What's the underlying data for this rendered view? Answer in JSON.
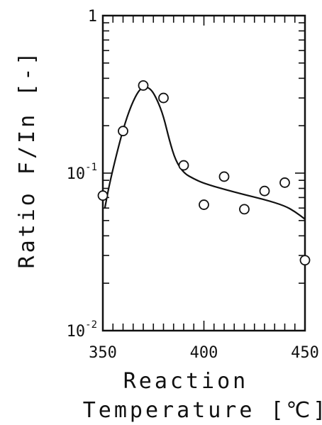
{
  "chart_data": {
    "type": "scatter",
    "xlabel_line1": "Reaction",
    "xlabel_line2": "Temperature  [℃]",
    "ylabel": "Ratio F/In [-]",
    "xlim": [
      350,
      450
    ],
    "ylim": [
      0.01,
      1
    ],
    "y_scale": "log",
    "grid": false,
    "x_ticks": [
      {
        "value": 350,
        "label": "350"
      },
      {
        "value": 400,
        "label": "400"
      },
      {
        "value": 450,
        "label": "450"
      }
    ],
    "y_ticks": [
      {
        "value": 0.01,
        "base": "10",
        "exp": "-2"
      },
      {
        "value": 0.1,
        "base": "10",
        "exp": "-1"
      },
      {
        "value": 1,
        "base": "1",
        "exp": ""
      }
    ],
    "points": [
      {
        "x": 350,
        "y": 0.072
      },
      {
        "x": 360,
        "y": 0.185
      },
      {
        "x": 370,
        "y": 0.36
      },
      {
        "x": 380,
        "y": 0.3
      },
      {
        "x": 390,
        "y": 0.112
      },
      {
        "x": 400,
        "y": 0.063
      },
      {
        "x": 410,
        "y": 0.095
      },
      {
        "x": 420,
        "y": 0.059
      },
      {
        "x": 430,
        "y": 0.077
      },
      {
        "x": 440,
        "y": 0.087
      },
      {
        "x": 450,
        "y": 0.028
      }
    ],
    "curve": [
      {
        "x": 351,
        "y": 0.06
      },
      {
        "x": 353,
        "y": 0.082
      },
      {
        "x": 356,
        "y": 0.12
      },
      {
        "x": 360,
        "y": 0.19
      },
      {
        "x": 364,
        "y": 0.27
      },
      {
        "x": 368,
        "y": 0.34
      },
      {
        "x": 371,
        "y": 0.355
      },
      {
        "x": 374,
        "y": 0.34
      },
      {
        "x": 377,
        "y": 0.29
      },
      {
        "x": 380,
        "y": 0.23
      },
      {
        "x": 383,
        "y": 0.16
      },
      {
        "x": 386,
        "y": 0.12
      },
      {
        "x": 390,
        "y": 0.1
      },
      {
        "x": 395,
        "y": 0.092
      },
      {
        "x": 400,
        "y": 0.086
      },
      {
        "x": 410,
        "y": 0.079
      },
      {
        "x": 420,
        "y": 0.073
      },
      {
        "x": 430,
        "y": 0.068
      },
      {
        "x": 440,
        "y": 0.062
      },
      {
        "x": 445,
        "y": 0.057
      },
      {
        "x": 450,
        "y": 0.051
      }
    ]
  }
}
